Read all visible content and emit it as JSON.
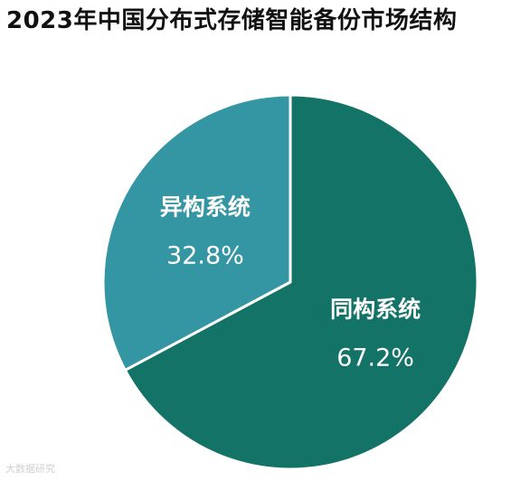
{
  "chart_data": {
    "type": "pie",
    "title": "2023年中国分布式存储智能备份市场结构",
    "slices": [
      {
        "label": "同构系统",
        "value": 67.2,
        "value_text": "67.2%",
        "color": "#137366"
      },
      {
        "label": "异构系统",
        "value": 32.8,
        "value_text": "32.8%",
        "color": "#3495a3"
      }
    ],
    "start_angle": "12 o'clock",
    "direction": "clockwise"
  },
  "watermark": "大数据研究"
}
